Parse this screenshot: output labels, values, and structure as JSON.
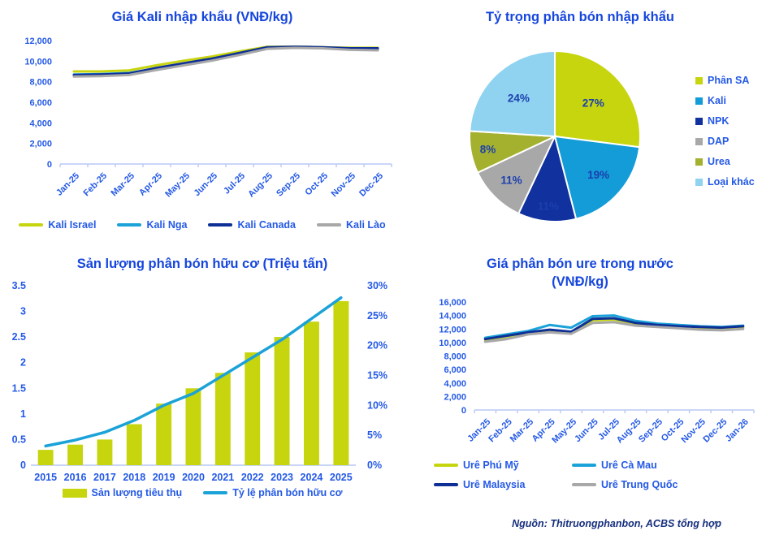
{
  "source_note": "Nguồn: Thitruongphanbon, ACBS tổng hợp",
  "colors": {
    "title_blue": "#1646dd",
    "tick_blue": "#2459e6",
    "axis_line": "#b9c9f5",
    "chartreuse": "#c6d50e",
    "cyan": "#1ba2d8",
    "navy": "#0d2f96",
    "gray": "#a8a8a8",
    "olive": "#a4b12f",
    "light_blue": "#8fd3f0",
    "source_navy": "#17307e"
  },
  "chart_data": [
    {
      "id": "kali_import",
      "type": "line",
      "title": "Giá Kali nhập khẩu (VNĐ/kg)",
      "x": [
        "Jan-25",
        "Feb-25",
        "Mar-25",
        "Apr-25",
        "May-25",
        "Jun-25",
        "Jul-25",
        "Aug-25",
        "Sep-25",
        "Oct-25",
        "Nov-25",
        "Dec-25"
      ],
      "ylim": [
        0,
        12000
      ],
      "yticks": [
        0,
        2000,
        4000,
        6000,
        8000,
        10000,
        12000
      ],
      "grid": false,
      "legend_position": "bottom",
      "series": [
        {
          "name": "Kali Israel",
          "color": "#c6d50e",
          "values": [
            9000,
            9000,
            9100,
            9600,
            10050,
            10450,
            10950,
            11400,
            11400,
            11350,
            11300,
            11300
          ]
        },
        {
          "name": "Kali Nga",
          "color": "#1ba2d8",
          "values": [
            8700,
            8750,
            8850,
            9300,
            9750,
            10150,
            10700,
            11300,
            11350,
            11300,
            11150,
            11100
          ]
        },
        {
          "name": "Kali Canada",
          "color": "#0d2f96",
          "values": [
            8650,
            8700,
            8800,
            9350,
            9800,
            10250,
            10800,
            11350,
            11400,
            11350,
            11250,
            11250
          ]
        },
        {
          "name": "Kali Lào",
          "color": "#a8a8a8",
          "values": [
            8500,
            8550,
            8650,
            9150,
            9600,
            10050,
            10600,
            11200,
            11300,
            11250,
            11100,
            11050
          ]
        }
      ]
    },
    {
      "id": "import_share",
      "type": "pie",
      "title": "Tỷ trọng phân bón nhập khẩu",
      "legend_position": "right",
      "slices": [
        {
          "label": "Phân SA",
          "pct": 27,
          "pct_label": "27%",
          "color": "#c6d50e"
        },
        {
          "label": "Kali",
          "pct": 19,
          "pct_label": "19%",
          "color": "#149cd8"
        },
        {
          "label": "NPK",
          "pct": 11,
          "pct_label": "11%",
          "color": "#10319e"
        },
        {
          "label": "DAP",
          "pct": 11,
          "pct_label": "11%",
          "color": "#a8a8a8"
        },
        {
          "label": "Urea",
          "pct": 8,
          "pct_label": "8%",
          "color": "#a4b12f"
        },
        {
          "label": "Loại khác",
          "pct": 24,
          "pct_label": "24%",
          "color": "#8fd3f0"
        }
      ]
    },
    {
      "id": "organic_fertilizer",
      "type": "bar-line",
      "title": "Sản lượng phân bón hữu cơ (Triệu tấn)",
      "categories": [
        "2015",
        "2016",
        "2017",
        "2018",
        "2019",
        "2020",
        "2021",
        "2022",
        "2023",
        "2024",
        "2025"
      ],
      "legend_position": "bottom",
      "bar": {
        "name": "Sản lượng tiêu thụ",
        "color": "#c6d50e",
        "values": [
          0.3,
          0.4,
          0.5,
          0.8,
          1.2,
          1.5,
          1.8,
          2.2,
          2.5,
          2.8,
          3.2
        ],
        "ylim": [
          0,
          3.5
        ],
        "yticks": [
          0,
          0.5,
          1,
          1.5,
          2,
          2.5,
          3,
          3.5
        ]
      },
      "line": {
        "name": "Tỷ lệ phân bón hữu cơ",
        "color": "#1ba2d8",
        "values": [
          3.2,
          4.2,
          5.5,
          7.5,
          10,
          12,
          15,
          18,
          21,
          24.5,
          28
        ],
        "ylim": [
          0,
          30
        ],
        "yticks": [
          0,
          5,
          10,
          15,
          20,
          25,
          30
        ],
        "tick_suffix": "%"
      }
    },
    {
      "id": "urea_domestic",
      "type": "line",
      "title": "Giá phân bón ure trong nước (VNĐ/kg)",
      "x": [
        "Jan-25",
        "Feb-25",
        "Mar-25",
        "Apr-25",
        "May-25",
        "Jun-25",
        "Jul-25",
        "Aug-25",
        "Sep-25",
        "Oct-25",
        "Nov-25",
        "Dec-25",
        "Jan-26"
      ],
      "ylim": [
        0,
        16000
      ],
      "yticks": [
        0,
        2000,
        4000,
        6000,
        8000,
        10000,
        12000,
        14000,
        16000
      ],
      "grid": false,
      "legend_position": "bottom",
      "series": [
        {
          "name": "Urê Phú Mỹ",
          "color": "#c6d50e",
          "values": [
            10200,
            10600,
            11400,
            11700,
            11500,
            13300,
            13400,
            12800,
            12500,
            12300,
            12100,
            12000,
            12200
          ]
        },
        {
          "name": "Urê Cà Mau",
          "color": "#1ba2d8",
          "values": [
            10700,
            11200,
            11700,
            12600,
            12200,
            13900,
            14000,
            13200,
            12800,
            12600,
            12400,
            12300,
            12500
          ]
        },
        {
          "name": "Urê Malaysia",
          "color": "#0d2f96",
          "values": [
            10500,
            11000,
            11500,
            11900,
            11600,
            13500,
            13600,
            12900,
            12600,
            12400,
            12300,
            12200,
            12400
          ]
        },
        {
          "name": "Urê Trung Quốc",
          "color": "#a8a8a8",
          "values": [
            10100,
            10500,
            11200,
            11500,
            11300,
            12900,
            13000,
            12500,
            12300,
            12100,
            11900,
            11800,
            12000
          ]
        }
      ]
    }
  ]
}
